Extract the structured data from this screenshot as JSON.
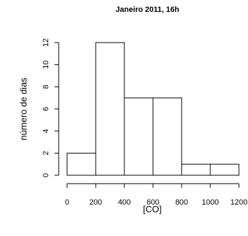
{
  "chart_data": {
    "type": "bar",
    "title": "Janeiro 2011, 16h",
    "xlabel": "[CO]",
    "ylabel": "número de dias",
    "bins": [
      {
        "start": 0,
        "end": 200,
        "count": 2
      },
      {
        "start": 200,
        "end": 400,
        "count": 12
      },
      {
        "start": 400,
        "end": 600,
        "count": 7
      },
      {
        "start": 600,
        "end": 800,
        "count": 7
      },
      {
        "start": 800,
        "end": 1000,
        "count": 1
      },
      {
        "start": 1000,
        "end": 1200,
        "count": 1
      }
    ],
    "xlim": [
      0,
      1200
    ],
    "ylim": [
      0,
      12
    ],
    "x_ticks": [
      0,
      200,
      400,
      600,
      800,
      1000,
      1200
    ],
    "y_ticks": [
      0,
      2,
      4,
      6,
      8,
      10,
      12
    ],
    "grid": false,
    "colors": {
      "bar_fill": "#ffffff",
      "bar_stroke": "#000000"
    }
  }
}
